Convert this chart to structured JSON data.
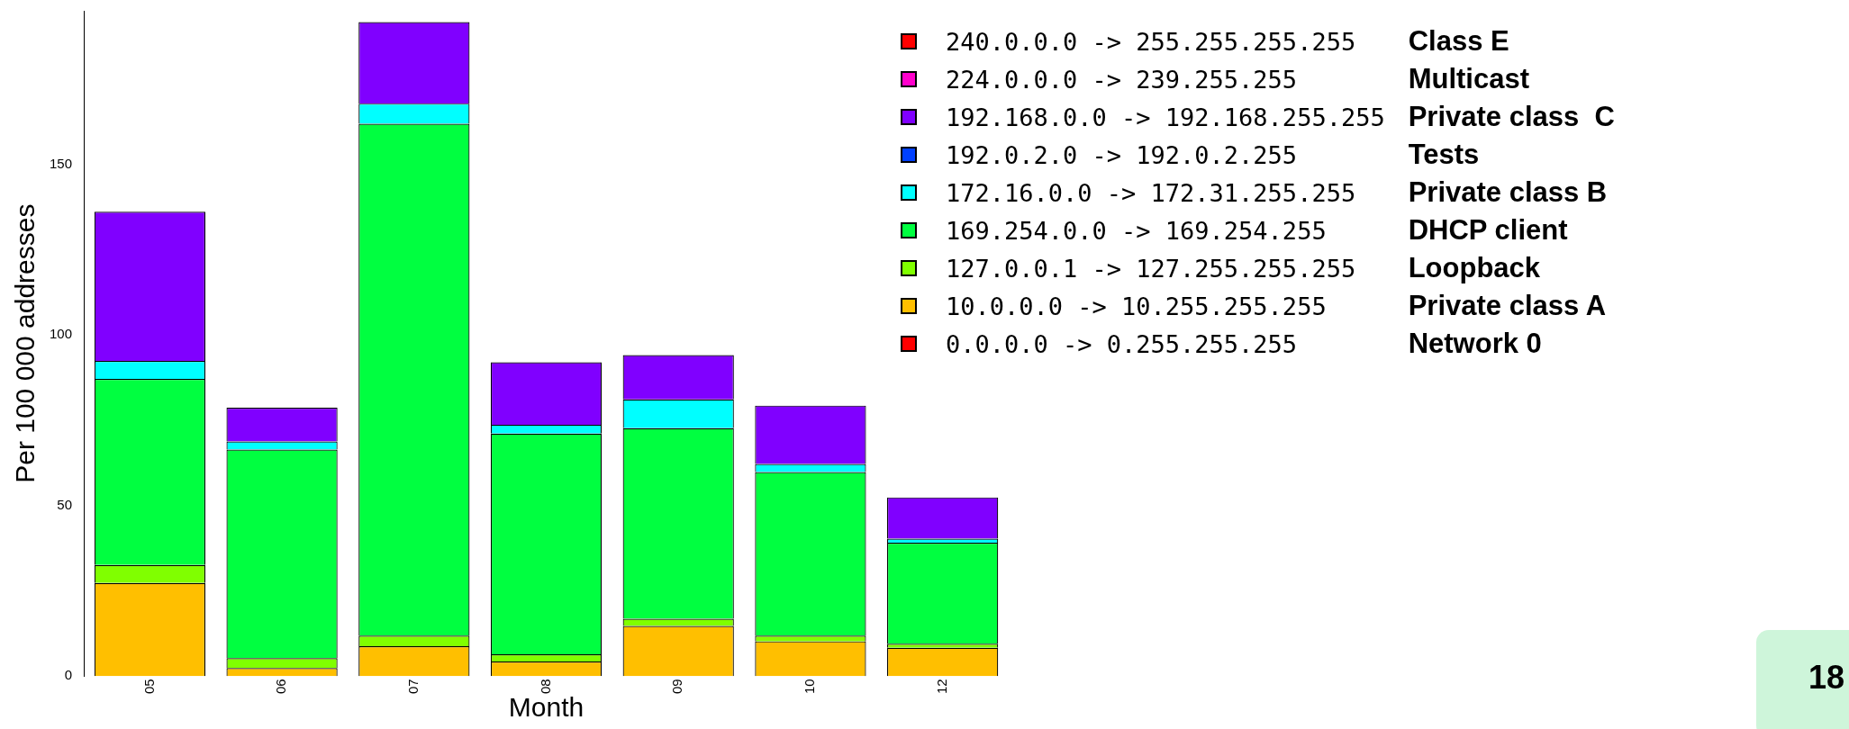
{
  "chart_data": {
    "type": "bar",
    "stacked": true,
    "xlabel": "Month",
    "ylabel": "Per 100 000 addresses",
    "categories": [
      "05",
      "06",
      "07",
      "08",
      "09",
      "10",
      "12"
    ],
    "series": [
      {
        "name": "0.0.0.0 -> 0.255.255.255",
        "color": "#ff0000",
        "values": [
          0,
          0,
          0,
          0,
          0,
          0,
          0
        ]
      },
      {
        "name": "10.0.0.0 -> 10.255.255.255",
        "color": "#ffbf00",
        "values": [
          27.3,
          2.4,
          8.8,
          4.3,
          14.7,
          10.2,
          8.3
        ]
      },
      {
        "name": "127.0.0.1 -> 127.255.255.255",
        "color": "#80ff00",
        "values": [
          5.3,
          2.9,
          3.1,
          2.1,
          2.1,
          1.7,
          1.2
        ]
      },
      {
        "name": "169.254.0.0 -> 169.254.255",
        "color": "#00ff40",
        "values": [
          54.5,
          61.1,
          150,
          64.7,
          55.9,
          47.9,
          29.6
        ]
      },
      {
        "name": "172.16.0.0 -> 172.31.255.255",
        "color": "#00ffff",
        "values": [
          5.3,
          2.4,
          5.9,
          2.6,
          8.4,
          2.4,
          1.2
        ]
      },
      {
        "name": "192.0.2.0 -> 192.0.2.255",
        "color": "#0040ff",
        "values": [
          0,
          0,
          0,
          0,
          0,
          0,
          0
        ]
      },
      {
        "name": "192.168.0.0 -> 192.168.255.255",
        "color": "#8000ff",
        "values": [
          43.7,
          9.9,
          23.9,
          18.3,
          13,
          17.1,
          12.1
        ]
      },
      {
        "name": "224.0.0.0 -> 239.255.255",
        "color": "#ff00cc",
        "values": [
          0,
          0,
          0,
          0,
          0,
          0,
          0
        ]
      },
      {
        "name": "240.0.0.0 -> 255.255.255.255",
        "color": "#ff0000",
        "values": [
          0,
          0,
          0,
          0,
          0,
          0,
          0
        ]
      }
    ],
    "ylim": [
      0,
      195
    ],
    "yticks": [
      0,
      50,
      100,
      150
    ],
    "grid": false,
    "legend": "right",
    "annotations": [
      "Class E",
      "Multicast",
      "Private class  C",
      "Tests",
      "Private class B",
      "DHCP client",
      "Loopback",
      "Private class A",
      "Network 0",
      "18"
    ]
  }
}
